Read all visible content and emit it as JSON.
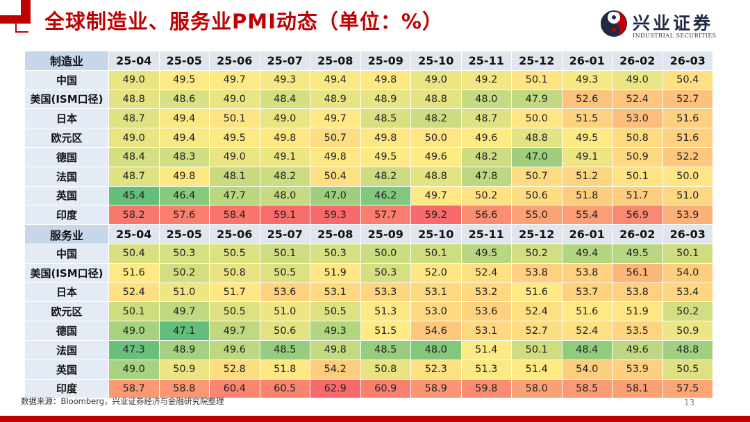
{
  "title": "全球制造业、服务业PMI动态（单位：%）",
  "logo": {
    "name": "兴业证券",
    "sub": "INDUSTRIAL SECURITIES"
  },
  "months": [
    "25-04",
    "25-05",
    "25-06",
    "25-07",
    "25-08",
    "25-09",
    "25-10",
    "25-11",
    "25-12",
    "26-01",
    "26-02",
    "26-03"
  ],
  "manufacturing": {
    "header": "制造业",
    "rows": [
      {
        "name": "中国",
        "values": [
          49.0,
          49.5,
          49.7,
          49.3,
          49.4,
          49.8,
          49.0,
          49.2,
          50.1,
          49.3,
          49.0,
          50.4
        ]
      },
      {
        "name": "美国(ISM口径)",
        "values": [
          48.8,
          48.6,
          49.0,
          48.4,
          48.9,
          48.9,
          48.8,
          48.0,
          47.9,
          52.6,
          52.4,
          52.7
        ]
      },
      {
        "name": "日本",
        "values": [
          48.7,
          49.4,
          50.1,
          49.0,
          49.7,
          48.5,
          48.2,
          48.7,
          50.0,
          51.5,
          53.0,
          51.6
        ]
      },
      {
        "name": "欧元区",
        "values": [
          49.0,
          49.4,
          49.5,
          49.8,
          50.7,
          49.8,
          50.0,
          49.6,
          48.8,
          49.5,
          50.8,
          51.6
        ]
      },
      {
        "name": "德国",
        "values": [
          48.4,
          48.3,
          49.0,
          49.1,
          49.8,
          49.5,
          49.6,
          48.2,
          47.0,
          49.1,
          50.9,
          52.2
        ]
      },
      {
        "name": "法国",
        "values": [
          48.7,
          49.8,
          48.1,
          48.2,
          50.4,
          48.2,
          48.8,
          47.8,
          50.7,
          51.2,
          50.1,
          50.0
        ]
      },
      {
        "name": "英国",
        "values": [
          45.4,
          46.4,
          47.7,
          48.0,
          47.0,
          46.2,
          49.7,
          50.2,
          50.6,
          51.8,
          51.7,
          51.0
        ]
      },
      {
        "name": "印度",
        "values": [
          58.2,
          57.6,
          58.4,
          59.1,
          59.3,
          57.7,
          59.2,
          56.6,
          55.0,
          55.4,
          56.9,
          53.9
        ]
      }
    ]
  },
  "services": {
    "header": "服务业",
    "rows": [
      {
        "name": "中国",
        "values": [
          50.4,
          50.3,
          50.5,
          50.1,
          50.3,
          50.0,
          50.1,
          49.5,
          50.2,
          49.4,
          49.5,
          50.1
        ]
      },
      {
        "name": "美国(ISM口径)",
        "values": [
          51.6,
          50.2,
          50.8,
          50.5,
          51.9,
          50.3,
          52.0,
          52.4,
          53.8,
          53.8,
          56.1,
          54.0
        ]
      },
      {
        "name": "日本",
        "values": [
          52.4,
          51.0,
          51.7,
          53.6,
          53.1,
          53.3,
          53.1,
          53.2,
          51.6,
          53.7,
          53.8,
          53.4
        ]
      },
      {
        "name": "欧元区",
        "values": [
          50.1,
          49.7,
          50.5,
          51.0,
          50.5,
          51.3,
          53.0,
          53.6,
          52.4,
          51.6,
          51.9,
          50.2
        ]
      },
      {
        "name": "德国",
        "values": [
          49.0,
          47.1,
          49.7,
          50.6,
          49.3,
          51.5,
          54.6,
          53.1,
          52.7,
          52.4,
          53.5,
          50.9
        ]
      },
      {
        "name": "法国",
        "values": [
          47.3,
          48.9,
          49.6,
          48.5,
          49.8,
          48.5,
          48.0,
          51.4,
          50.1,
          48.4,
          49.6,
          48.8
        ]
      },
      {
        "name": "英国",
        "values": [
          49.0,
          50.9,
          52.8,
          51.8,
          54.2,
          50.8,
          52.3,
          51.3,
          51.4,
          54.0,
          53.9,
          50.5
        ]
      },
      {
        "name": "印度",
        "values": [
          58.7,
          58.8,
          60.4,
          60.5,
          62.9,
          60.9,
          58.9,
          59.8,
          58.0,
          58.5,
          58.1,
          57.5
        ]
      }
    ]
  },
  "colors": {
    "low": "#63be7b",
    "mid": "#ffeb84",
    "high": "#f8696b",
    "brand": "#c00000"
  },
  "source": "数据来源：Bloomberg，兴业证券经济与金融研究院整理",
  "page_number": "13"
}
